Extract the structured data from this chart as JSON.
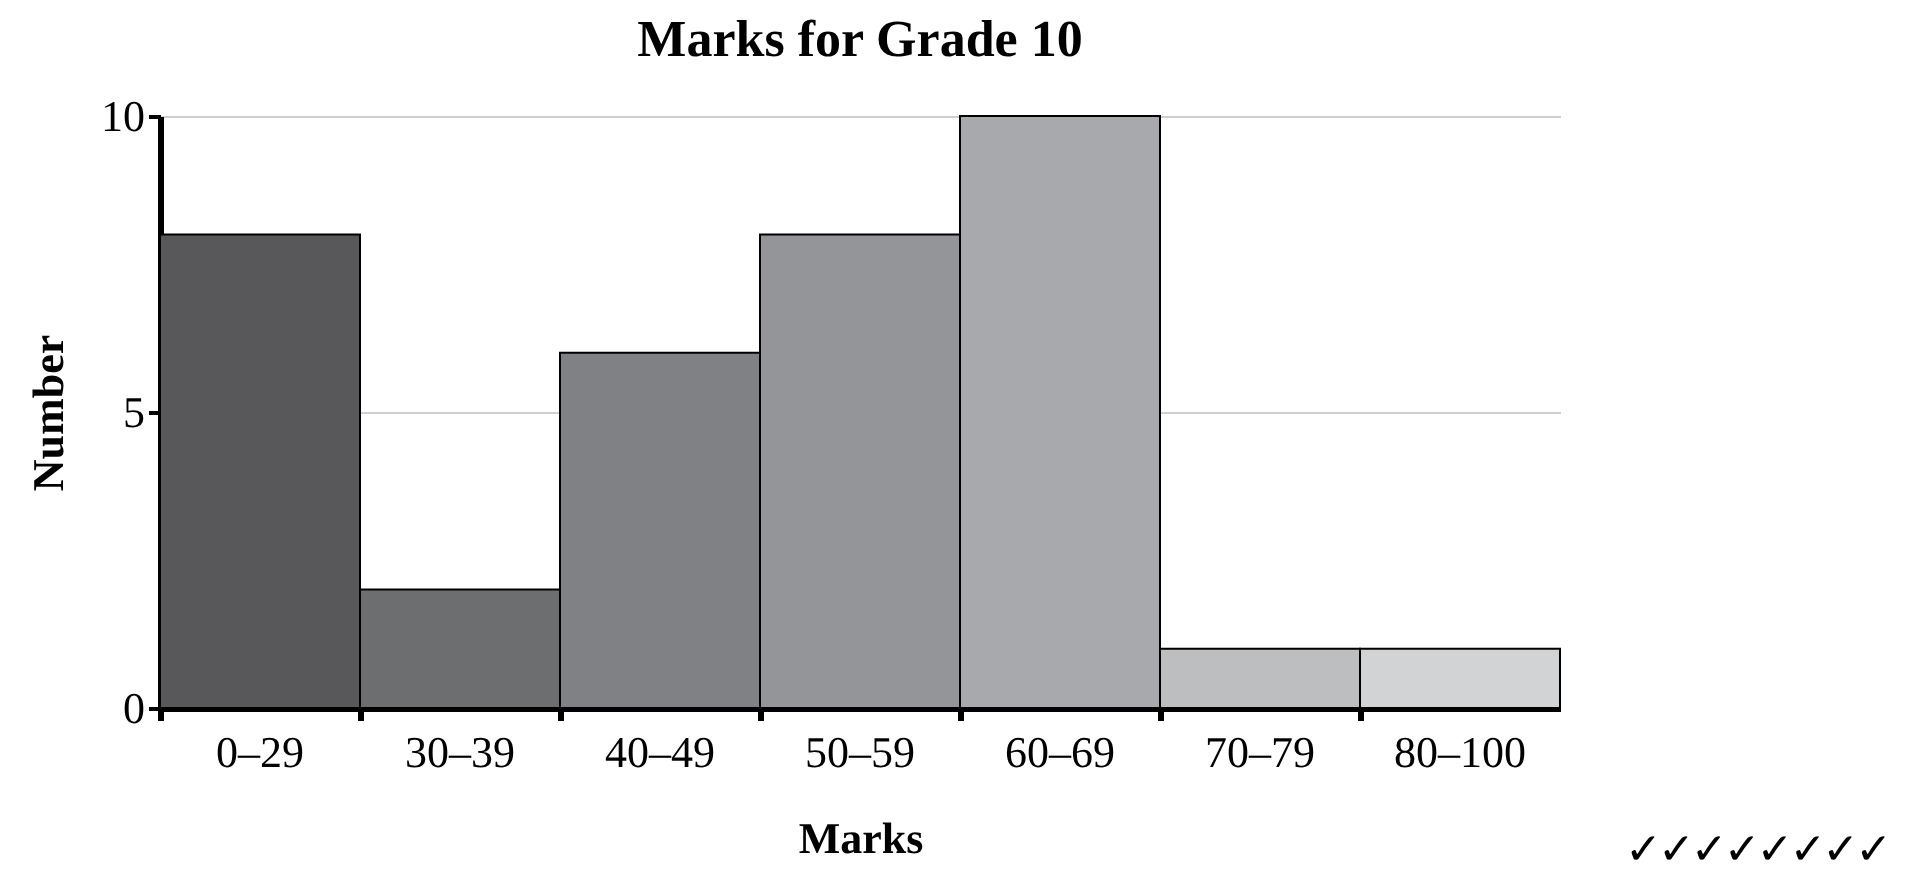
{
  "chart_data": {
    "type": "bar",
    "title": "Marks for Grade 10",
    "xlabel": "Marks",
    "ylabel": "Number",
    "categories": [
      "0–29",
      "30–39",
      "40–49",
      "50–59",
      "60–69",
      "70–79",
      "80–100"
    ],
    "values": [
      8,
      2,
      6,
      8,
      10,
      1,
      1
    ],
    "colors": [
      "#58585a",
      "#6d6e70",
      "#808184",
      "#939598",
      "#a7a9ac",
      "#bcbec0",
      "#d1d3d4"
    ],
    "ylim": [
      0,
      10
    ],
    "yticks": [
      0,
      5,
      10
    ],
    "grid": "y",
    "annotations": [
      "✓✓✓✓✓✓✓✓"
    ]
  }
}
